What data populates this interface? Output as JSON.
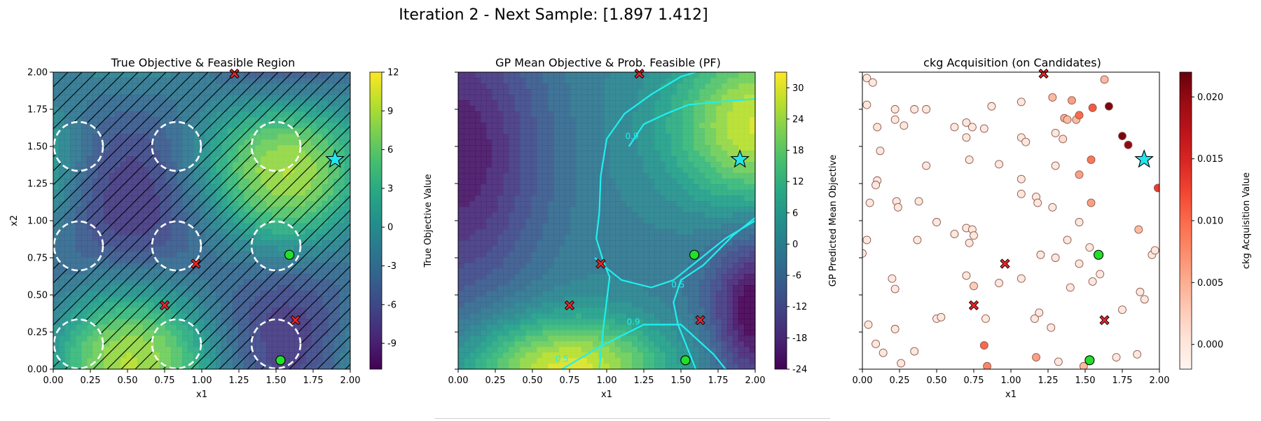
{
  "figure": {
    "suptitle": "Iteration 2 - Next Sample: [1.897 1.412]"
  },
  "colors": {
    "infeasible": "#e8262a",
    "feasible": "#22e02a",
    "next_sample": "#22e5ee",
    "pf_contour": "#1ff0f0",
    "hatch": "#000000"
  },
  "chart_data": [
    {
      "type": "heatmap",
      "title": "True Objective & Feasible Region",
      "xlabel": "x1",
      "ylabel": "x2",
      "xlim": [
        0,
        2
      ],
      "ylim": [
        0,
        2
      ],
      "xticks": [
        "0.00",
        "0.25",
        "0.50",
        "0.75",
        "1.00",
        "1.25",
        "1.50",
        "1.75",
        "2.00"
      ],
      "yticks": [
        "0.00",
        "0.25",
        "0.50",
        "0.75",
        "1.00",
        "1.25",
        "1.50",
        "1.75",
        "2.00"
      ],
      "colormap": "viridis",
      "colorbar": {
        "label": "True Objective Value",
        "min": -11,
        "max": 12,
        "ticks": [
          "-9",
          "-6",
          "-3",
          "0",
          "3",
          "6",
          "9",
          "12"
        ],
        "tick_values": [
          -9,
          -6,
          -3,
          0,
          3,
          6,
          9,
          12
        ]
      },
      "feasible_regions": [
        {
          "cx": 0.17,
          "cy": 0.17
        },
        {
          "cx": 0.83,
          "cy": 0.17
        },
        {
          "cx": 1.5,
          "cy": 0.17
        },
        {
          "cx": 0.17,
          "cy": 0.83
        },
        {
          "cx": 0.83,
          "cy": 0.83
        },
        {
          "cx": 1.5,
          "cy": 0.83
        },
        {
          "cx": 0.17,
          "cy": 1.5
        },
        {
          "cx": 0.83,
          "cy": 1.5
        },
        {
          "cx": 1.5,
          "cy": 1.5
        }
      ],
      "feasible_region_radius": 0.165,
      "infeasible_hatched": true
    },
    {
      "type": "heatmap",
      "title": "GP Mean Objective & Prob. Feasible (PF)",
      "xlabel": "x1",
      "xlim": [
        0,
        2
      ],
      "ylim": [
        0,
        2
      ],
      "xticks": [
        "0.00",
        "0.25",
        "0.50",
        "0.75",
        "1.00",
        "1.25",
        "1.50",
        "1.75",
        "2.00"
      ],
      "colormap": "viridis",
      "colorbar": {
        "label": "GP Predicted Mean Objective",
        "min": -24,
        "max": 33,
        "ticks": [
          "-24",
          "-18",
          "-12",
          "-6",
          "0",
          "6",
          "12",
          "18",
          "24",
          "30"
        ],
        "tick_values": [
          -24,
          -18,
          -12,
          -6,
          0,
          6,
          12,
          18,
          24,
          30
        ]
      },
      "pf_contour_labels": [
        {
          "text": "0.9",
          "x": 1.17,
          "y": 1.55
        },
        {
          "text": "0.5",
          "x": 1.48,
          "y": 0.55
        },
        {
          "text": "0.9",
          "x": 1.18,
          "y": 0.3
        },
        {
          "text": "0.5",
          "x": 0.7,
          "y": 0.05
        }
      ]
    },
    {
      "type": "scatter",
      "title": "ckg Acquisition (on Candidates)",
      "xlabel": "x1",
      "xlim": [
        0,
        2
      ],
      "ylim": [
        0,
        2
      ],
      "xticks": [
        "0.00",
        "0.25",
        "0.50",
        "0.75",
        "1.00",
        "1.25",
        "1.50",
        "1.75",
        "2.00"
      ],
      "colormap": "reds",
      "colorbar": {
        "label": "ckg Acquisition Value",
        "min": -0.002,
        "max": 0.022,
        "ticks": [
          "0.000",
          "0.005",
          "0.010",
          "0.015",
          "0.020"
        ],
        "tick_values": [
          0,
          0.005,
          0.01,
          0.015,
          0.02
        ]
      },
      "candidates": [
        [
          0.03,
          1.96,
          0
        ],
        [
          0.07,
          1.93,
          0
        ],
        [
          0.03,
          1.78,
          0
        ],
        [
          0.1,
          1.63,
          0.0005
        ],
        [
          0.12,
          1.47,
          0
        ],
        [
          0.1,
          1.27,
          0
        ],
        [
          0.09,
          1.24,
          0
        ],
        [
          0.05,
          1.12,
          0
        ],
        [
          0.03,
          0.87,
          0
        ],
        [
          0.0,
          0.78,
          0
        ],
        [
          0.04,
          0.3,
          0
        ],
        [
          0.09,
          0.17,
          0
        ],
        [
          0.14,
          0.11,
          0
        ],
        [
          0.22,
          1.75,
          0
        ],
        [
          0.22,
          1.68,
          0
        ],
        [
          0.28,
          1.64,
          0
        ],
        [
          0.35,
          1.75,
          0
        ],
        [
          0.43,
          1.75,
          0
        ],
        [
          0.43,
          1.37,
          0
        ],
        [
          0.23,
          1.13,
          0
        ],
        [
          0.24,
          1.09,
          0
        ],
        [
          0.38,
          1.13,
          0
        ],
        [
          0.37,
          0.87,
          0
        ],
        [
          0.5,
          0.99,
          0
        ],
        [
          0.62,
          0.91,
          0
        ],
        [
          0.7,
          0.95,
          0
        ],
        [
          0.74,
          0.94,
          0
        ],
        [
          0.75,
          0.9,
          0
        ],
        [
          0.72,
          0.85,
          0
        ],
        [
          0.2,
          0.61,
          0
        ],
        [
          0.22,
          0.54,
          0
        ],
        [
          0.22,
          0.27,
          0
        ],
        [
          0.35,
          0.12,
          0
        ],
        [
          0.26,
          0.04,
          0
        ],
        [
          0.5,
          0.34,
          0
        ],
        [
          0.53,
          0.35,
          0
        ],
        [
          0.62,
          1.63,
          0
        ],
        [
          0.7,
          1.66,
          0
        ],
        [
          0.74,
          1.63,
          0
        ],
        [
          0.7,
          1.56,
          0
        ],
        [
          0.82,
          1.62,
          0
        ],
        [
          0.87,
          1.77,
          0
        ],
        [
          0.72,
          1.41,
          0
        ],
        [
          0.92,
          1.38,
          0
        ],
        [
          1.07,
          1.8,
          0
        ],
        [
          1.07,
          1.56,
          0
        ],
        [
          1.1,
          1.53,
          0
        ],
        [
          1.07,
          1.28,
          0
        ],
        [
          1.07,
          1.18,
          0
        ],
        [
          1.17,
          1.16,
          0
        ],
        [
          1.18,
          1.12,
          0
        ],
        [
          1.28,
          1.09,
          0
        ],
        [
          1.3,
          1.37,
          0
        ],
        [
          1.3,
          1.59,
          0
        ],
        [
          1.35,
          1.55,
          0.0015
        ],
        [
          1.28,
          1.83,
          0.004
        ],
        [
          1.41,
          1.81,
          0.006
        ],
        [
          1.36,
          1.69,
          0.005
        ],
        [
          1.38,
          1.68,
          0.004
        ],
        [
          1.44,
          1.68,
          0.004
        ],
        [
          1.46,
          1.71,
          0.01
        ],
        [
          1.55,
          1.76,
          0.011
        ],
        [
          1.63,
          1.95,
          0.004
        ],
        [
          1.66,
          1.77,
          0.021
        ],
        [
          1.75,
          1.57,
          0.021
        ],
        [
          1.79,
          1.51,
          0.02
        ],
        [
          1.54,
          1.41,
          0.009
        ],
        [
          1.46,
          1.31,
          0.006
        ],
        [
          1.54,
          1.12,
          0.006
        ],
        [
          1.46,
          0.99,
          0
        ],
        [
          1.53,
          0.82,
          0
        ],
        [
          1.46,
          0.71,
          0
        ],
        [
          1.4,
          0.55,
          0
        ],
        [
          1.55,
          0.59,
          0
        ],
        [
          1.6,
          0.64,
          0
        ],
        [
          1.38,
          0.87,
          0
        ],
        [
          1.3,
          0.75,
          0
        ],
        [
          1.2,
          0.77,
          0
        ],
        [
          1.07,
          0.61,
          0
        ],
        [
          0.92,
          0.58,
          0
        ],
        [
          0.75,
          0.56,
          0.0025
        ],
        [
          0.7,
          0.63,
          0
        ],
        [
          1.16,
          0.34,
          0
        ],
        [
          1.19,
          0.38,
          0
        ],
        [
          1.27,
          0.28,
          0
        ],
        [
          1.17,
          0.08,
          0.006
        ],
        [
          1.32,
          0.05,
          0
        ],
        [
          1.49,
          0.02,
          0.004
        ],
        [
          1.71,
          0.08,
          0
        ],
        [
          1.75,
          0.4,
          0
        ],
        [
          1.85,
          0.1,
          0
        ],
        [
          1.87,
          0.52,
          0
        ],
        [
          1.9,
          0.47,
          0
        ],
        [
          1.86,
          0.94,
          0.004
        ],
        [
          1.95,
          0.77,
          0
        ],
        [
          1.97,
          0.8,
          0
        ],
        [
          1.99,
          1.22,
          0.013
        ],
        [
          0.82,
          0.16,
          0.01
        ],
        [
          0.84,
          0.02,
          0.008
        ],
        [
          0.83,
          0.34,
          0
        ]
      ]
    }
  ],
  "markers": {
    "infeasible_samples": [
      [
        1.22,
        1.99
      ],
      [
        0.96,
        0.71
      ],
      [
        0.75,
        0.43
      ],
      [
        1.63,
        0.33
      ]
    ],
    "feasible_samples": [
      [
        1.59,
        0.77
      ],
      [
        1.53,
        0.06
      ]
    ],
    "next_sample": [
      1.897,
      1.412
    ]
  }
}
